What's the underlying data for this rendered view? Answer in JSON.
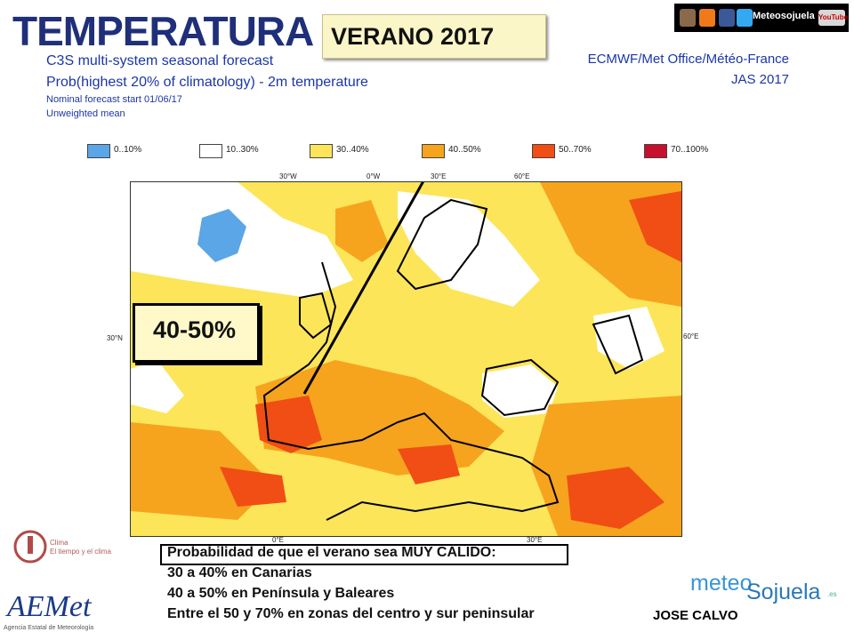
{
  "header": {
    "title": "TEMPERATURA",
    "season_label": "VERANO 2017",
    "subtitle_1": "C3S multi-system seasonal forecast",
    "subtitle_2": "Prob(highest 20% of climatology) - 2m temperature",
    "subtitle_3": "Nominal forecast start 01/06/17",
    "subtitle_4": "Unweighted mean",
    "source": "ECMWF/Met Office/Météo-France",
    "period": "JAS 2017"
  },
  "social": {
    "label": "Meteosojuela",
    "youtube_label": "YouTube"
  },
  "legend": [
    {
      "label": "0..10%",
      "color": "#5aa6e6"
    },
    {
      "label": "10..30%",
      "color": "#ffffff"
    },
    {
      "label": "30..40%",
      "color": "#fde55a"
    },
    {
      "label": "40..50%",
      "color": "#f6a41e"
    },
    {
      "label": "50..70%",
      "color": "#f04e14"
    },
    {
      "label": "70..100%",
      "color": "#c8102e"
    }
  ],
  "map": {
    "top_ticks": [
      "30°W",
      "0°W",
      "30°E",
      "60°E"
    ],
    "left_tick": "30°N",
    "right_tick": "60°E",
    "bottom_ticks": [
      "0°E",
      "30°E"
    ]
  },
  "callout": {
    "text": "40-50%"
  },
  "summary": {
    "heading": "Probabilidad de que el verano sea MUY CÁLIDO:",
    "lines": [
      "30 a 40% en Canarias",
      "40 a 50% en Península y Baleares",
      "Entre el 50 y 70% en zonas del centro y sur peninsular"
    ]
  },
  "author": "JOSE CALVO",
  "branding": {
    "meteo": "meteo",
    "sojuela": "Sojuela",
    "domain": ".es",
    "aemet": "AEMet",
    "aemet_sub": "Agencia Estatal de Meteorología",
    "climate_line1": "Clima",
    "climate_line2": "El tiempo y el clima"
  },
  "colors": {
    "title_blue": "#1f2f7a",
    "text_blue": "#1b36a8"
  }
}
